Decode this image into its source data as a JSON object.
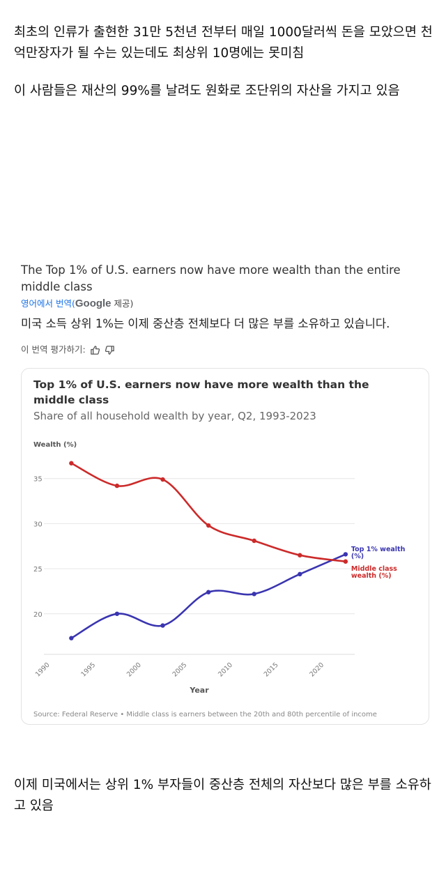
{
  "post": {
    "intro_1": "최초의 인류가 출현한 31만 5천년 전부터 매일 1000달러씩 돈을 모았으면 천억만장자가 될 수는 있는데도 최상위 10명에는 못미침",
    "intro_2": "이 사람들은 재산의 99%를 날려도 원화로 조단위의 자산을 가지고 있음",
    "outro": "이제 미국에서는 상위 1% 부자들이 중산층 전체의 자산보다 많은 부를 소유하고 있음"
  },
  "tweet": {
    "title": "The Top 1% of U.S. earners now have more wealth than the entire middle class",
    "translate_label": "영어에서 번역(",
    "translate_provider": "Google",
    "translate_suffix": " 제공)",
    "translated_text": "미국 소득 상위 1%는 이제 중산층 전체보다 더 많은 부를 소유하고 있습니다.",
    "rate_label": "이 번역 평가하기:",
    "thumbs_up_icon": "thumbs-up-icon",
    "thumbs_down_icon": "thumbs-down-icon"
  },
  "chart_data": {
    "type": "line",
    "title": "Top 1% of U.S. earners now have more wealth than the middle class",
    "subtitle": "Share of all household wealth by year, Q2, 1993-2023",
    "ylabel": "Wealth (%)",
    "xlabel": "Year",
    "xlim": [
      1990,
      2024
    ],
    "ylim": [
      15.5,
      39
    ],
    "x_ticks": [
      1990,
      1995,
      2000,
      2005,
      2010,
      2015,
      2020
    ],
    "y_ticks": [
      20,
      25,
      30,
      35
    ],
    "grid": true,
    "series": [
      {
        "name": "Top 1% wealth (%)",
        "color": "#3a35b0",
        "points": [
          [
            1993,
            17.3
          ],
          [
            1998,
            20.0
          ],
          [
            2003,
            18.7
          ],
          [
            2008,
            22.4
          ],
          [
            2013,
            22.2
          ],
          [
            2018,
            24.4
          ],
          [
            2023,
            26.6
          ]
        ]
      },
      {
        "name": "Middle class wealth (%)",
        "color": "#cc2a2a",
        "points": [
          [
            1993,
            36.7
          ],
          [
            1998,
            34.2
          ],
          [
            2003,
            34.9
          ],
          [
            2008,
            29.8
          ],
          [
            2013,
            28.1
          ],
          [
            2018,
            26.5
          ],
          [
            2023,
            25.8
          ]
        ]
      }
    ],
    "source": "Source: Federal Reserve • Middle class is earners between the 20th and 80th percentile of income"
  }
}
